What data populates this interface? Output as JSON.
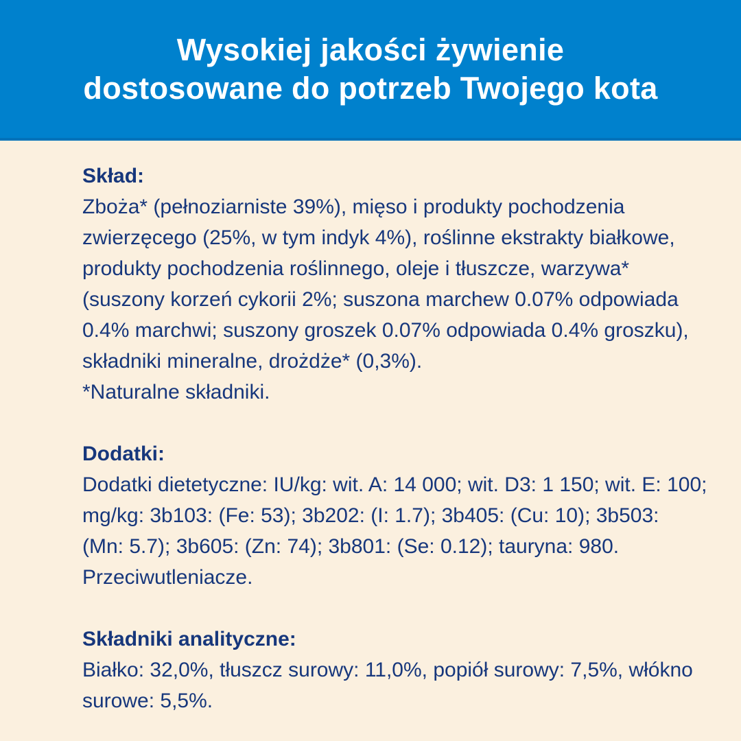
{
  "page": {
    "background_color": "#fbf0df",
    "banner_color": "#0081cd",
    "text_color": "#17377c"
  },
  "header": {
    "title_lines": [
      "Wysokiej jakości żywienie",
      "dostosowane do potrzeb Twojego kota"
    ]
  },
  "sections": [
    {
      "heading": "Skład:",
      "lines": [
        "Zboża* (pełnoziarniste 39%), mięso i produkty pochodzenia",
        "zwierzęcego (25%, w tym indyk 4%), roślinne ekstrakty białkowe,",
        "produkty pochodzenia roślinnego, oleje i tłuszcze, warzywa*",
        "(suszony korzeń cykorii 2%; suszona marchew 0.07% odpowiada",
        "0.4% marchwi; suszony groszek 0.07% odpowiada 0.4% groszku),",
        "składniki mineralne, drożdże* (0,3%).",
        "*Naturalne składniki."
      ]
    },
    {
      "heading": "Dodatki:",
      "lines": [
        "Dodatki dietetyczne: IU/kg: wit. A: 14 000; wit. D3: 1 150; wit. E: 100;",
        "mg/kg: 3b103: (Fe: 53); 3b202: (I: 1.7); 3b405: (Cu: 10); 3b503:",
        "(Mn: 5.7); 3b605: (Zn: 74); 3b801: (Se: 0.12); tauryna: 980.",
        "Przeciwutleniacze."
      ]
    },
    {
      "heading": "Składniki analityczne:",
      "lines": [
        "Białko: 32,0%, tłuszcz surowy: 11,0%, popiół surowy: 7,5%, włókno",
        "surowe: 5,5%."
      ]
    }
  ]
}
